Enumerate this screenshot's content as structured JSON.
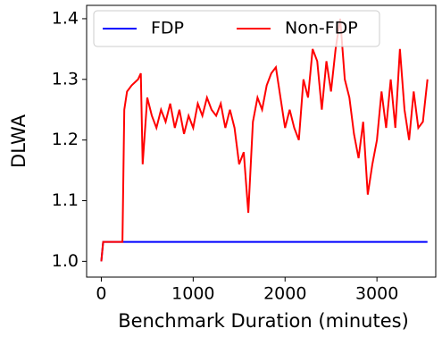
{
  "chart_data": {
    "type": "line",
    "x_label": "Benchmark Duration (minutes)",
    "y_label": "DLWA",
    "x": [
      0,
      20,
      230,
      250,
      280,
      330,
      400,
      430,
      450,
      500,
      550,
      600,
      650,
      700,
      750,
      800,
      850,
      900,
      950,
      1000,
      1050,
      1100,
      1150,
      1200,
      1250,
      1300,
      1350,
      1400,
      1450,
      1500,
      1550,
      1600,
      1650,
      1700,
      1750,
      1800,
      1850,
      1900,
      1950,
      2000,
      2050,
      2100,
      2150,
      2200,
      2250,
      2300,
      2350,
      2400,
      2450,
      2500,
      2550,
      2600,
      2650,
      2700,
      2750,
      2800,
      2850,
      2900,
      2950,
      3000,
      3050,
      3100,
      3150,
      3200,
      3250,
      3300,
      3350,
      3400,
      3450,
      3500,
      3550
    ],
    "series": [
      {
        "name": "FDP",
        "color": "#0000ff",
        "values": [
          1.0,
          1.032,
          1.032,
          1.032,
          1.032,
          1.032,
          1.032,
          1.032,
          1.032,
          1.032,
          1.032,
          1.032,
          1.032,
          1.032,
          1.032,
          1.032,
          1.032,
          1.032,
          1.032,
          1.032,
          1.032,
          1.032,
          1.032,
          1.032,
          1.032,
          1.032,
          1.032,
          1.032,
          1.032,
          1.032,
          1.032,
          1.032,
          1.032,
          1.032,
          1.032,
          1.032,
          1.032,
          1.032,
          1.032,
          1.032,
          1.032,
          1.032,
          1.032,
          1.032,
          1.032,
          1.032,
          1.032,
          1.032,
          1.032,
          1.032,
          1.032,
          1.032,
          1.032,
          1.032,
          1.032,
          1.032,
          1.032,
          1.032,
          1.032,
          1.032,
          1.032,
          1.032,
          1.032,
          1.032,
          1.032,
          1.032,
          1.032,
          1.032,
          1.032,
          1.032,
          1.032
        ]
      },
      {
        "name": "Non-FDP",
        "color": "#ff0000",
        "values": [
          1.0,
          1.032,
          1.032,
          1.25,
          1.28,
          1.29,
          1.3,
          1.31,
          1.16,
          1.27,
          1.24,
          1.22,
          1.25,
          1.23,
          1.26,
          1.22,
          1.25,
          1.21,
          1.24,
          1.22,
          1.26,
          1.24,
          1.27,
          1.25,
          1.24,
          1.26,
          1.22,
          1.25,
          1.22,
          1.16,
          1.18,
          1.08,
          1.23,
          1.27,
          1.25,
          1.29,
          1.31,
          1.32,
          1.27,
          1.22,
          1.25,
          1.22,
          1.2,
          1.3,
          1.27,
          1.35,
          1.33,
          1.25,
          1.33,
          1.28,
          1.35,
          1.4,
          1.3,
          1.27,
          1.21,
          1.17,
          1.23,
          1.11,
          1.16,
          1.2,
          1.28,
          1.22,
          1.3,
          1.22,
          1.35,
          1.25,
          1.2,
          1.28,
          1.22,
          1.23,
          1.3
        ]
      }
    ],
    "xlim": [
      -160,
      3640
    ],
    "ylim": [
      0.974,
      1.422
    ],
    "xticks": [
      0,
      1000,
      2000,
      3000
    ],
    "yticks": [
      {
        "value": 1,
        "label": "1.0"
      },
      1.1,
      1.2,
      1.3,
      1.4
    ],
    "legend": "upper left"
  }
}
